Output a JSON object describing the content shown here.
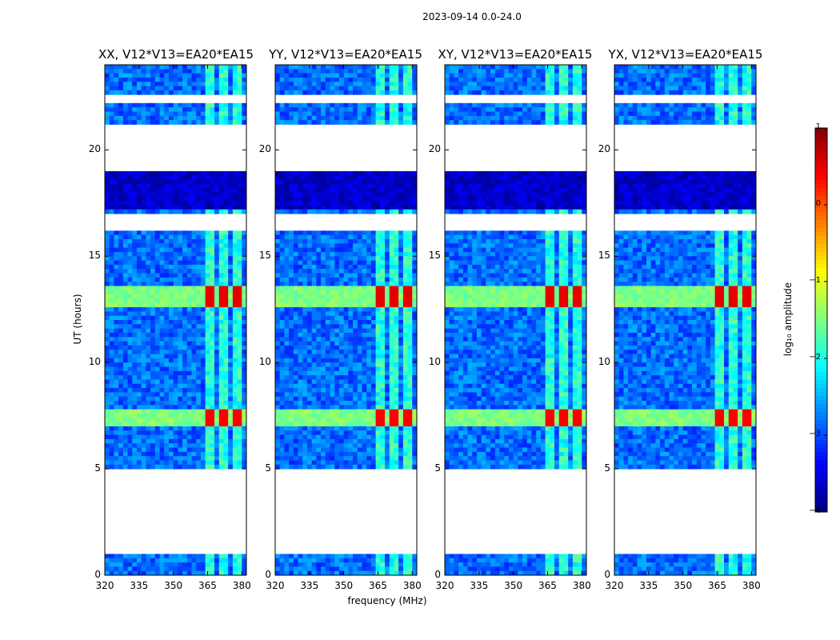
{
  "figure": {
    "suptitle": "2023-09-14 0.0-24.0",
    "xlabel": "frequency (MHz)",
    "ylabel": "UT (hours)",
    "colorbar_label": "log₁₀ amplitude"
  },
  "chart_data": {
    "type": "heatmap",
    "colormap": "jet",
    "panels": [
      {
        "title": "XX, V12*V13=EA20*EA15"
      },
      {
        "title": "YY, V12*V13=EA20*EA15"
      },
      {
        "title": "XY, V12*V13=EA20*EA15"
      },
      {
        "title": "YX, V12*V13=EA20*EA15"
      }
    ],
    "x_ticks": [
      "320",
      "335",
      "350",
      "365",
      "380"
    ],
    "x_tick_values": [
      320,
      335,
      350,
      365,
      380
    ],
    "xlim": [
      320,
      382
    ],
    "y_ticks": [
      "0",
      "5",
      "10",
      "15",
      "20"
    ],
    "y_tick_values": [
      0,
      5,
      10,
      15,
      20
    ],
    "ylim": [
      0,
      24
    ],
    "colorbar": {
      "ticks": [
        "1",
        "0",
        "−1",
        "−2",
        "−3",
        "−4"
      ],
      "tick_values": [
        1,
        0,
        -1,
        -2,
        -3,
        -4
      ],
      "range": [
        -4,
        1
      ]
    },
    "data_gaps_hours": [
      [
        0.9,
        5.1
      ],
      [
        16.3,
        17.0
      ],
      [
        19.1,
        21.2
      ],
      [
        22.3,
        22.6
      ]
    ],
    "rfi_band_mhz": [
      362,
      381
    ],
    "bright_events": [
      {
        "start_hour": 7.0,
        "end_hour": 7.7,
        "level": 0.4
      },
      {
        "start_hour": 12.7,
        "end_hour": 13.5,
        "level": 0.5
      }
    ]
  }
}
